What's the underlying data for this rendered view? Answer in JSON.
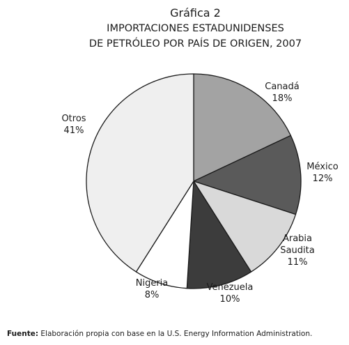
{
  "header": {
    "chart_number": "Gráfica 2",
    "title_line1": "IMPORTACIONES ESTADUNIDENSES",
    "title_line2": "DE PETRÓLEO POR PAÍS DE ORIGEN, 2007"
  },
  "footer": {
    "source_label": "Fuente:",
    "source_text": "Elaboración propia con base en la U.S. Energy Information Administration."
  },
  "chart_data": {
    "type": "pie",
    "title": "IMPORTACIONES ESTADUNIDENSES DE PETRÓLEO POR PAÍS DE ORIGEN, 2007",
    "unit": "%",
    "slices": [
      {
        "label": [
          "Canadá"
        ],
        "value": 18,
        "display": "18%",
        "color": "#a3a3a3"
      },
      {
        "label": [
          "México"
        ],
        "value": 12,
        "display": "12%",
        "color": "#5a5a5a"
      },
      {
        "label": [
          "Arabia",
          "Saudita"
        ],
        "value": 11,
        "display": "11%",
        "color": "#d9d9d9"
      },
      {
        "label": [
          "Venezuela"
        ],
        "value": 10,
        "display": "10%",
        "color": "#3c3c3c"
      },
      {
        "label": [
          "Nigeria"
        ],
        "value": 8,
        "display": "8%",
        "color": "#ffffff"
      },
      {
        "label": [
          "Otros"
        ],
        "value": 41,
        "display": "41%",
        "color": "#efefef"
      }
    ],
    "start": "12 o'clock",
    "direction": "clockwise"
  }
}
